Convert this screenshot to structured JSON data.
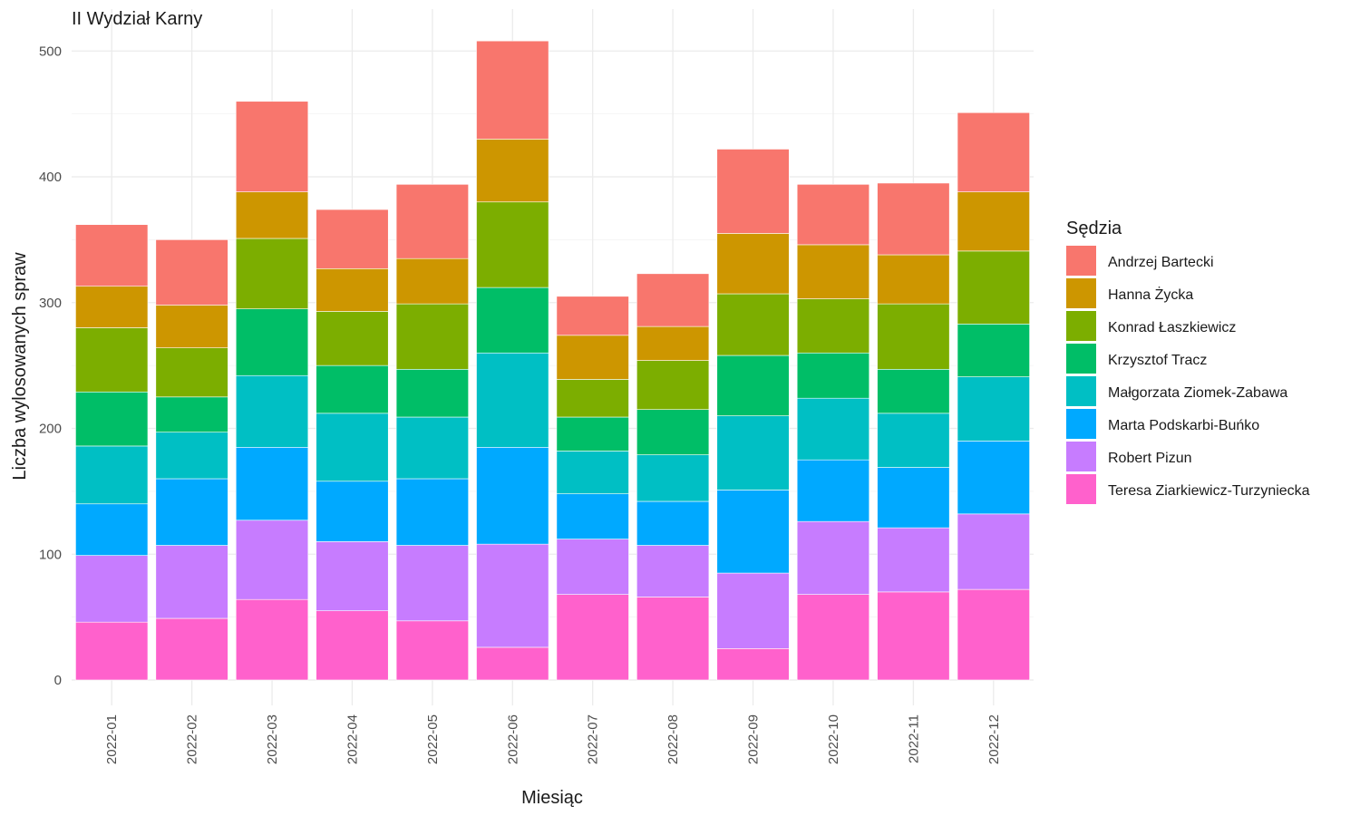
{
  "chart_data": {
    "type": "bar",
    "stacked": true,
    "title": "II Wydział Karny",
    "xlabel": "Miesiąc",
    "ylabel": "Liczba wylosowanych spraw",
    "ylim": [
      0,
      520
    ],
    "yticks": [
      0,
      100,
      200,
      300,
      400,
      500
    ],
    "grid": true,
    "legend_title": "Sędzia",
    "legend_position": "right",
    "categories": [
      "2022-01",
      "2022-02",
      "2022-03",
      "2022-04",
      "2022-05",
      "2022-06",
      "2022-07",
      "2022-08",
      "2022-09",
      "2022-10",
      "2022-11",
      "2022-12"
    ],
    "series": [
      {
        "name": "Teresa Ziarkiewicz-Turzyniecka",
        "color": "#FF61CC",
        "values": [
          46,
          49,
          64,
          55,
          47,
          26,
          68,
          66,
          25,
          68,
          70,
          72
        ]
      },
      {
        "name": "Robert Pizun",
        "color": "#C77CFF",
        "values": [
          53,
          58,
          63,
          55,
          60,
          82,
          44,
          41,
          60,
          58,
          51,
          60
        ]
      },
      {
        "name": "Marta Podskarbi-Buńko",
        "color": "#00A9FF",
        "values": [
          41,
          53,
          58,
          48,
          53,
          77,
          36,
          35,
          66,
          49,
          48,
          58
        ]
      },
      {
        "name": "Małgorzata Ziomek-Zabawa",
        "color": "#00BFC4",
        "values": [
          46,
          37,
          57,
          54,
          49,
          75,
          34,
          37,
          59,
          49,
          43,
          51
        ]
      },
      {
        "name": "Krzysztof Tracz",
        "color": "#00BE67",
        "values": [
          43,
          28,
          53,
          38,
          38,
          52,
          27,
          36,
          48,
          36,
          35,
          42
        ]
      },
      {
        "name": "Konrad Łaszkiewicz",
        "color": "#7CAE00",
        "values": [
          51,
          39,
          56,
          43,
          52,
          68,
          30,
          39,
          49,
          43,
          52,
          58
        ]
      },
      {
        "name": "Hanna Życka",
        "color": "#CD9600",
        "values": [
          33,
          34,
          37,
          34,
          36,
          50,
          35,
          27,
          48,
          43,
          39,
          47
        ]
      },
      {
        "name": "Andrzej Bartecki",
        "color": "#F8766D",
        "values": [
          49,
          52,
          72,
          47,
          59,
          78,
          31,
          42,
          67,
          48,
          57,
          63
        ]
      }
    ],
    "legend_order": [
      "Andrzej Bartecki",
      "Hanna Życka",
      "Konrad Łaszkiewicz",
      "Krzysztof Tracz",
      "Małgorzata Ziomek-Zabawa",
      "Marta Podskarbi-Buńko",
      "Robert Pizun",
      "Teresa Ziarkiewicz-Turzyniecka"
    ]
  }
}
